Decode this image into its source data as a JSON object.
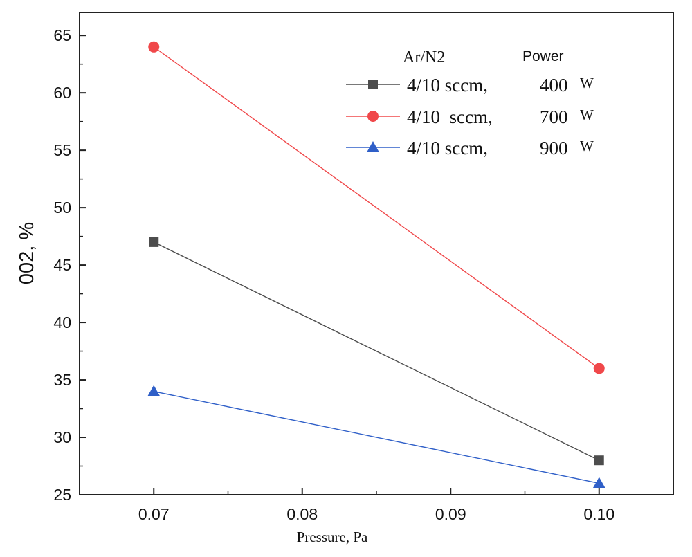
{
  "chart_data": {
    "type": "line",
    "xlabel": "Pressure, Pa",
    "ylabel": "002, %",
    "xlim": [
      0.065,
      0.105
    ],
    "ylim": [
      25,
      67
    ],
    "x_ticks": [
      0.07,
      0.08,
      0.09,
      0.1
    ],
    "x_tick_labels": [
      "0.07",
      "0.08",
      "0.09",
      "0.10"
    ],
    "y_ticks": [
      25,
      30,
      35,
      40,
      45,
      50,
      55,
      60,
      65
    ],
    "y_tick_labels": [
      "25",
      "30",
      "35",
      "40",
      "45",
      "50",
      "55",
      "60",
      "65"
    ],
    "grid": false,
    "legend_position": "top-right",
    "legend_header": {
      "gas": "Ar/N2",
      "power": "Power"
    },
    "x": [
      0.07,
      0.1
    ],
    "series": [
      {
        "gas": "4/10 sccm,",
        "power": "400",
        "unit": "W",
        "values": [
          47,
          28
        ],
        "color": "#4d4d4d",
        "marker": "square"
      },
      {
        "gas": "4/10  sccm,",
        "power": "700",
        "unit": "W",
        "values": [
          64,
          36
        ],
        "color": "#f0484a",
        "marker": "circle"
      },
      {
        "gas": "4/10 sccm,",
        "power": "900",
        "unit": "W",
        "values": [
          34,
          26
        ],
        "color": "#2f5fc8",
        "marker": "triangle"
      }
    ]
  }
}
